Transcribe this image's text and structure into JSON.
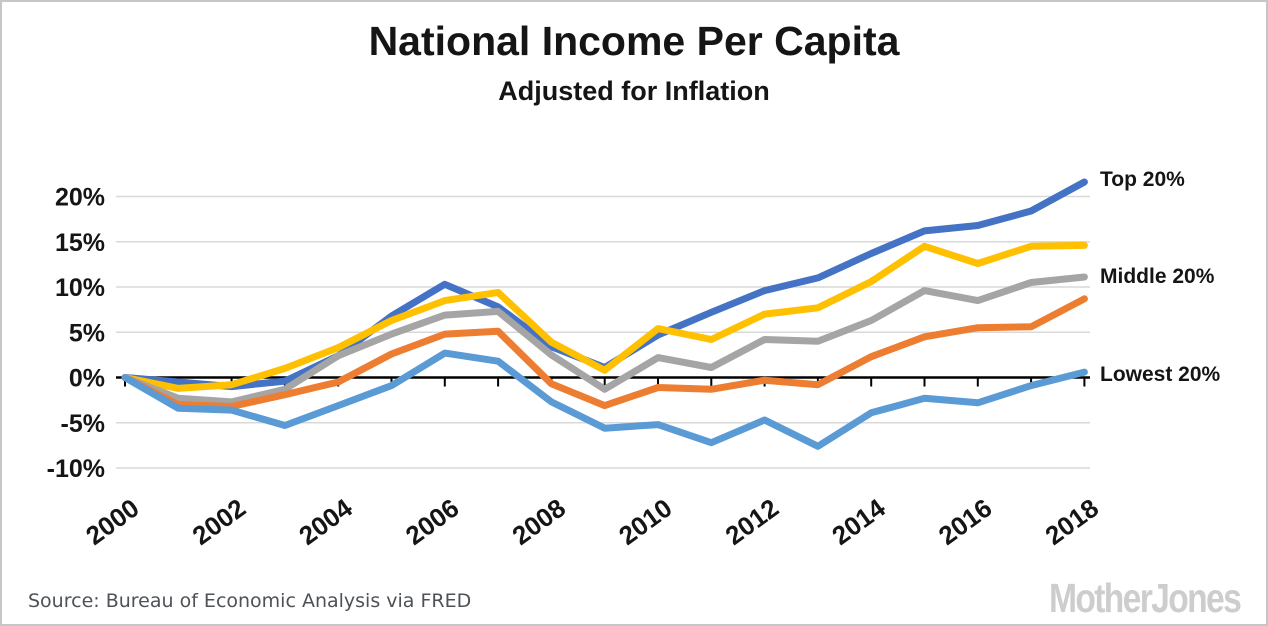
{
  "header": {
    "title": "National Income Per Capita",
    "subtitle": "Adjusted for Inflation"
  },
  "footer": {
    "source": "Source: Bureau of Economic Analysis via FRED",
    "logo": "MotherJones"
  },
  "chart_data": {
    "type": "line",
    "title": "National Income Per Capita",
    "subtitle": "Adjusted for Inflation",
    "x": [
      2000,
      2001,
      2002,
      2003,
      2004,
      2005,
      2006,
      2007,
      2008,
      2009,
      2010,
      2011,
      2012,
      2013,
      2014,
      2015,
      2016,
      2017,
      2018
    ],
    "x_tick_labels": [
      "2000",
      "2002",
      "2004",
      "2006",
      "2008",
      "2010",
      "2012",
      "2014",
      "2016",
      "2018"
    ],
    "y_ticks": [
      20,
      15,
      10,
      5,
      0,
      -5,
      -10
    ],
    "y_tick_labels": [
      "20%",
      "15%",
      "10%",
      "5%",
      "0%",
      "-5%",
      "-10%"
    ],
    "ylim": [
      -10,
      22
    ],
    "unit": "percent change since 2000",
    "grid": "horizontal",
    "legend_position": "right-of-line-ends",
    "colors": {
      "grid": "#d9d9d9",
      "zero_axis": "#000000",
      "text": "#151515",
      "source_text": "#4e5256",
      "logo": "#cdcdcd"
    },
    "series": [
      {
        "label": "Top 20%",
        "color": "#4472C4",
        "values": [
          0,
          -0.5,
          -1.0,
          -0.4,
          2.4,
          6.8,
          10.3,
          7.8,
          3.4,
          1.1,
          4.7,
          7.2,
          9.6,
          11.0,
          13.7,
          16.2,
          16.8,
          18.4,
          21.6
        ]
      },
      {
        "label": "",
        "color": "#FFC000",
        "values": [
          0,
          -1.2,
          -0.8,
          1.0,
          3.3,
          6.3,
          8.5,
          9.4,
          3.9,
          0.8,
          5.4,
          4.2,
          7.0,
          7.7,
          10.6,
          14.5,
          12.6,
          14.5,
          14.6
        ]
      },
      {
        "label": "Middle 20%",
        "color": "#A5A5A5",
        "values": [
          0,
          -2.3,
          -2.7,
          -1.3,
          2.4,
          4.8,
          6.9,
          7.3,
          2.5,
          -1.3,
          2.2,
          1.1,
          4.2,
          4.0,
          6.3,
          9.6,
          8.5,
          10.5,
          11.1
        ]
      },
      {
        "label": "",
        "color": "#ED7D31",
        "values": [
          0,
          -3.0,
          -3.2,
          -1.9,
          -0.5,
          2.6,
          4.8,
          5.1,
          -0.7,
          -3.1,
          -1.1,
          -1.3,
          -0.3,
          -0.8,
          2.3,
          4.5,
          5.5,
          5.6,
          8.7
        ]
      },
      {
        "label": "Lowest 20%",
        "color": "#5B9BD5",
        "values": [
          0,
          -3.4,
          -3.6,
          -5.3,
          -3.1,
          -0.9,
          2.7,
          1.8,
          -2.7,
          -5.6,
          -5.2,
          -7.2,
          -4.7,
          -7.6,
          -3.9,
          -2.3,
          -2.8,
          -0.9,
          0.6
        ]
      }
    ]
  }
}
